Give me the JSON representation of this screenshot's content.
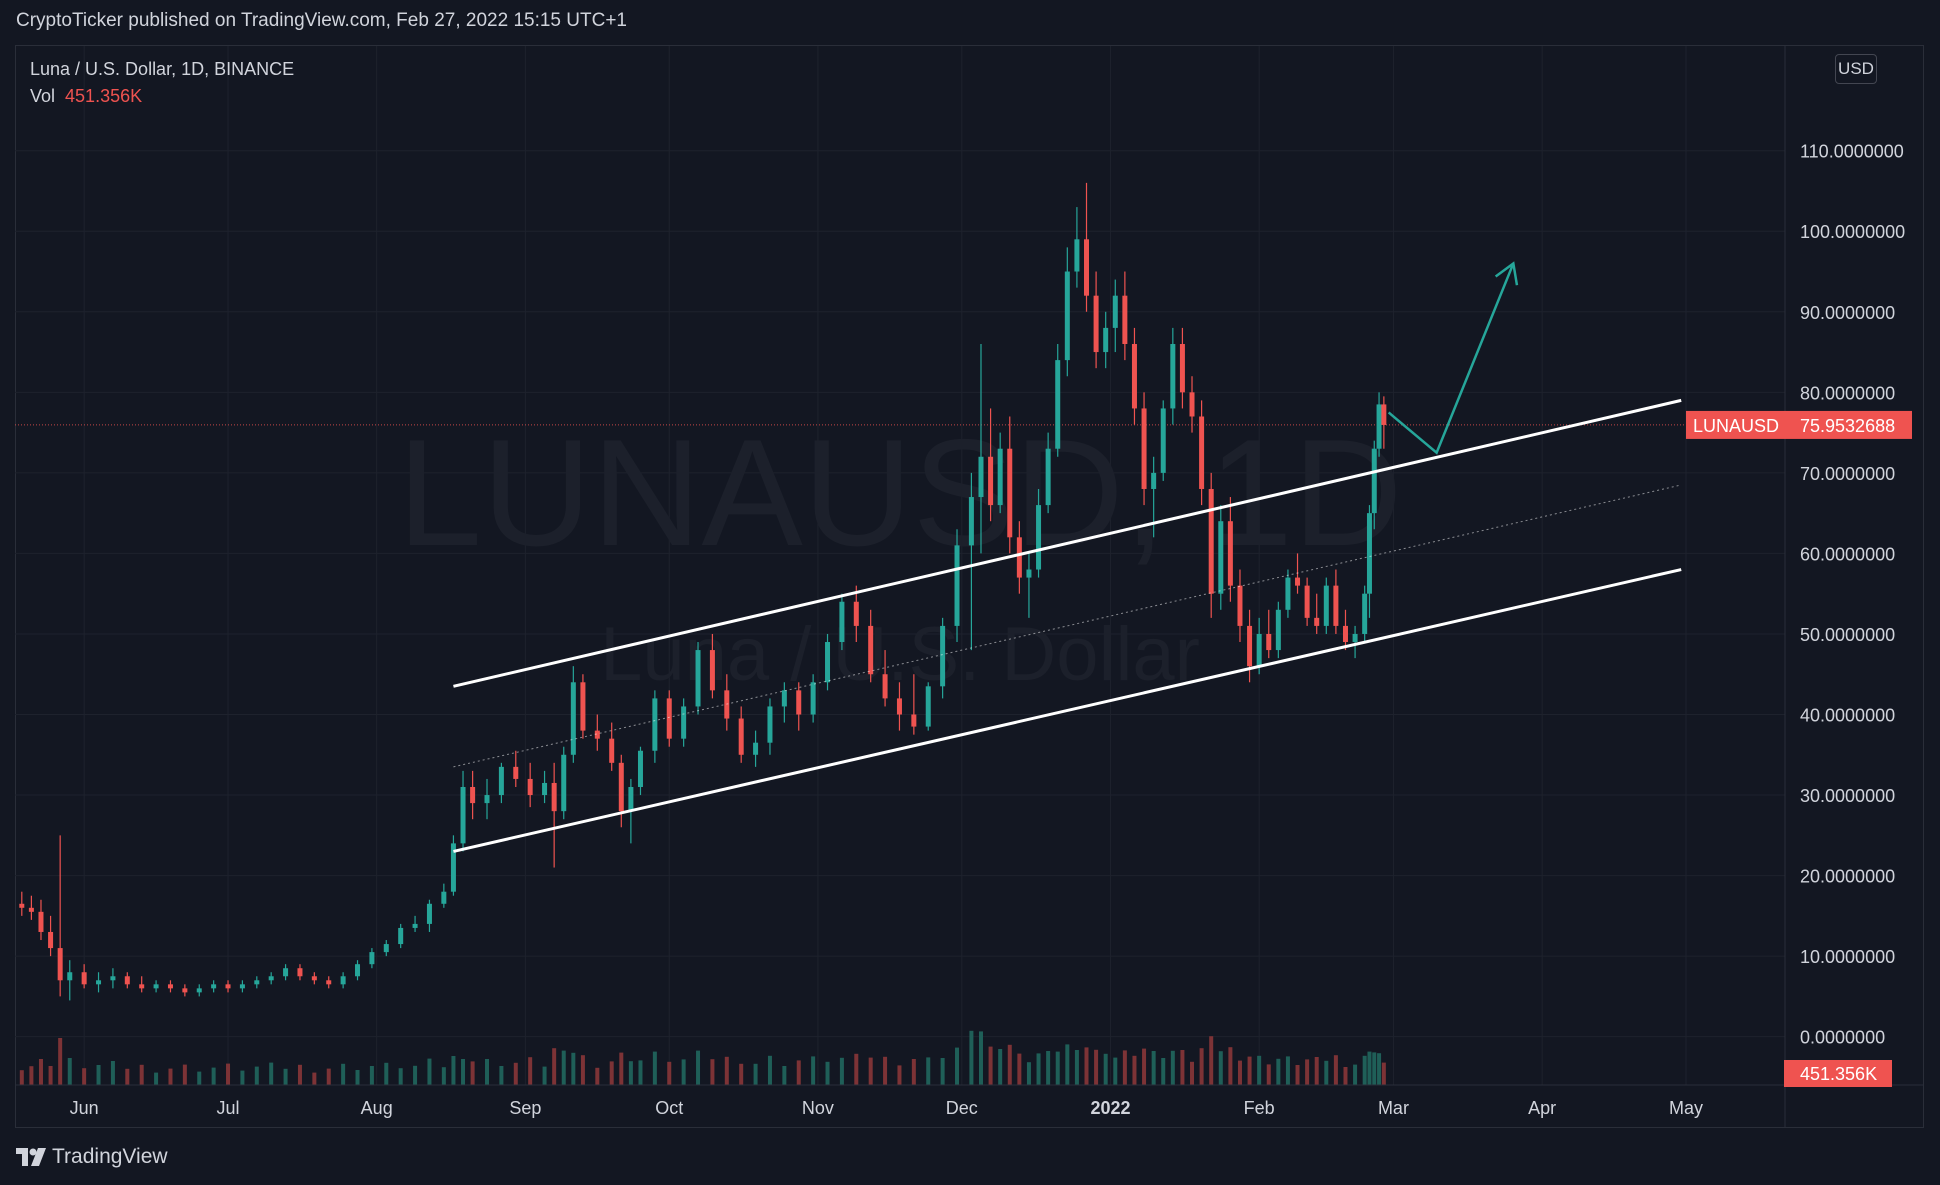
{
  "header": {
    "published_by": "CryptoTicker published on TradingView.com, Feb 27, 2022 15:15 UTC+1"
  },
  "legend": {
    "symbol_line": "Luna / U.S. Dollar, 1D, BINANCE",
    "vol_label": "Vol",
    "vol_value": "451.356K"
  },
  "currency_button": "USD",
  "watermark": {
    "symbol": "LUNAUSD, 1D",
    "name": "Luna / U.S. Dollar"
  },
  "price_tag": {
    "symbol": "LUNAUSD",
    "value": "75.9532688"
  },
  "volume_tag": "451.356K",
  "footer": {
    "brand": "TradingView"
  },
  "colors": {
    "background": "#131722",
    "up": "#26a69a",
    "down": "#ef5350",
    "channel": "#ffffff",
    "arrow": "#26a69a"
  },
  "chart_data": {
    "type": "candlestick",
    "ylim": [
      -6,
      123
    ],
    "y_ticks": [
      {
        "value": 110,
        "label": "110.0000000"
      },
      {
        "value": 100,
        "label": "100.0000000"
      },
      {
        "value": 90,
        "label": "90.0000000"
      },
      {
        "value": 80,
        "label": "80.0000000"
      },
      {
        "value": 70,
        "label": "70.0000000"
      },
      {
        "value": 60,
        "label": "60.0000000"
      },
      {
        "value": 50,
        "label": "50.0000000"
      },
      {
        "value": 40,
        "label": "40.0000000"
      },
      {
        "value": 30,
        "label": "30.0000000"
      },
      {
        "value": 20,
        "label": "20.0000000"
      },
      {
        "value": 10,
        "label": "10.0000000"
      },
      {
        "value": 0,
        "label": "0.0000000"
      }
    ],
    "x_ticks": [
      {
        "date": "2021-06-01",
        "label": "Jun",
        "bold": false
      },
      {
        "date": "2021-07-01",
        "label": "Jul",
        "bold": false
      },
      {
        "date": "2021-08-01",
        "label": "Aug",
        "bold": false
      },
      {
        "date": "2021-09-01",
        "label": "Sep",
        "bold": false
      },
      {
        "date": "2021-10-01",
        "label": "Oct",
        "bold": false
      },
      {
        "date": "2021-11-01",
        "label": "Nov",
        "bold": false
      },
      {
        "date": "2021-12-01",
        "label": "Dec",
        "bold": false
      },
      {
        "date": "2022-01-01",
        "label": "2022",
        "bold": true
      },
      {
        "date": "2022-02-01",
        "label": "Feb",
        "bold": false
      },
      {
        "date": "2022-03-01",
        "label": "Mar",
        "bold": false
      },
      {
        "date": "2022-04-01",
        "label": "Apr",
        "bold": false
      },
      {
        "date": "2022-05-01",
        "label": "May",
        "bold": false
      }
    ],
    "last_price": 75.9532688,
    "channel": {
      "upper": [
        {
          "date": "2021-08-17",
          "value": 43.5
        },
        {
          "date": "2022-04-30",
          "value": 79
        }
      ],
      "middle": [
        {
          "date": "2021-08-17",
          "value": 33.5
        },
        {
          "date": "2022-04-30",
          "value": 68.5
        }
      ],
      "lower": [
        {
          "date": "2021-08-17",
          "value": 23
        },
        {
          "date": "2022-04-30",
          "value": 58
        }
      ]
    },
    "projection_arrow": [
      {
        "date": "2022-02-28",
        "value": 77.5
      },
      {
        "date": "2022-03-10",
        "value": 72.5
      },
      {
        "date": "2022-03-26",
        "value": 96
      }
    ],
    "candles": [
      {
        "date": "2021-05-19",
        "o": 16.5,
        "h": 18.0,
        "l": 15.0,
        "c": 16.0
      },
      {
        "date": "2021-05-21",
        "o": 16.0,
        "h": 17.5,
        "l": 14.5,
        "c": 15.5
      },
      {
        "date": "2021-05-23",
        "o": 15.5,
        "h": 17.0,
        "l": 12.0,
        "c": 13.0
      },
      {
        "date": "2021-05-25",
        "o": 13.0,
        "h": 15.0,
        "l": 10.0,
        "c": 11.0
      },
      {
        "date": "2021-05-27",
        "o": 11.0,
        "h": 25.0,
        "l": 5.0,
        "c": 7.0
      },
      {
        "date": "2021-05-29",
        "o": 7.0,
        "h": 9.5,
        "l": 4.5,
        "c": 8.0
      },
      {
        "date": "2021-06-01",
        "o": 8.0,
        "h": 9.0,
        "l": 6.0,
        "c": 6.5
      },
      {
        "date": "2021-06-04",
        "o": 6.5,
        "h": 8.0,
        "l": 5.5,
        "c": 7.0
      },
      {
        "date": "2021-06-07",
        "o": 7.0,
        "h": 8.5,
        "l": 6.0,
        "c": 7.5
      },
      {
        "date": "2021-06-10",
        "o": 7.5,
        "h": 8.0,
        "l": 6.0,
        "c": 6.5
      },
      {
        "date": "2021-06-13",
        "o": 6.5,
        "h": 7.5,
        "l": 5.5,
        "c": 6.0
      },
      {
        "date": "2021-06-16",
        "o": 6.0,
        "h": 7.0,
        "l": 5.5,
        "c": 6.5
      },
      {
        "date": "2021-06-19",
        "o": 6.5,
        "h": 7.0,
        "l": 5.5,
        "c": 6.0
      },
      {
        "date": "2021-06-22",
        "o": 6.0,
        "h": 6.5,
        "l": 5.0,
        "c": 5.5
      },
      {
        "date": "2021-06-25",
        "o": 5.5,
        "h": 6.5,
        "l": 5.0,
        "c": 6.0
      },
      {
        "date": "2021-06-28",
        "o": 6.0,
        "h": 7.0,
        "l": 5.5,
        "c": 6.5
      },
      {
        "date": "2021-07-01",
        "o": 6.5,
        "h": 7.0,
        "l": 5.5,
        "c": 6.0
      },
      {
        "date": "2021-07-04",
        "o": 6.0,
        "h": 7.0,
        "l": 5.5,
        "c": 6.5
      },
      {
        "date": "2021-07-07",
        "o": 6.5,
        "h": 7.5,
        "l": 6.0,
        "c": 7.0
      },
      {
        "date": "2021-07-10",
        "o": 7.0,
        "h": 8.0,
        "l": 6.5,
        "c": 7.5
      },
      {
        "date": "2021-07-13",
        "o": 7.5,
        "h": 9.0,
        "l": 7.0,
        "c": 8.5
      },
      {
        "date": "2021-07-16",
        "o": 8.5,
        "h": 9.0,
        "l": 7.0,
        "c": 7.5
      },
      {
        "date": "2021-07-19",
        "o": 7.5,
        "h": 8.0,
        "l": 6.5,
        "c": 7.0
      },
      {
        "date": "2021-07-22",
        "o": 7.0,
        "h": 7.5,
        "l": 6.0,
        "c": 6.5
      },
      {
        "date": "2021-07-25",
        "o": 6.5,
        "h": 8.0,
        "l": 6.0,
        "c": 7.5
      },
      {
        "date": "2021-07-28",
        "o": 7.5,
        "h": 9.5,
        "l": 7.0,
        "c": 9.0
      },
      {
        "date": "2021-07-31",
        "o": 9.0,
        "h": 11.0,
        "l": 8.5,
        "c": 10.5
      },
      {
        "date": "2021-08-03",
        "o": 10.5,
        "h": 12.0,
        "l": 10.0,
        "c": 11.5
      },
      {
        "date": "2021-08-06",
        "o": 11.5,
        "h": 14.0,
        "l": 11.0,
        "c": 13.5
      },
      {
        "date": "2021-08-09",
        "o": 13.5,
        "h": 15.0,
        "l": 13.0,
        "c": 14.0
      },
      {
        "date": "2021-08-12",
        "o": 14.0,
        "h": 17.0,
        "l": 13.0,
        "c": 16.5
      },
      {
        "date": "2021-08-15",
        "o": 16.5,
        "h": 19.0,
        "l": 16.0,
        "c": 18.0
      },
      {
        "date": "2021-08-17",
        "o": 18.0,
        "h": 25.0,
        "l": 17.5,
        "c": 24.0
      },
      {
        "date": "2021-08-19",
        "o": 24.0,
        "h": 33.0,
        "l": 23.0,
        "c": 31.0
      },
      {
        "date": "2021-08-21",
        "o": 31.0,
        "h": 33.0,
        "l": 27.0,
        "c": 29.0
      },
      {
        "date": "2021-08-24",
        "o": 29.0,
        "h": 32.0,
        "l": 27.0,
        "c": 30.0
      },
      {
        "date": "2021-08-27",
        "o": 30.0,
        "h": 34.0,
        "l": 29.0,
        "c": 33.5
      },
      {
        "date": "2021-08-30",
        "o": 33.5,
        "h": 35.5,
        "l": 31.0,
        "c": 32.0
      },
      {
        "date": "2021-09-02",
        "o": 32.0,
        "h": 34.0,
        "l": 28.5,
        "c": 30.0
      },
      {
        "date": "2021-09-05",
        "o": 30.0,
        "h": 33.0,
        "l": 29.0,
        "c": 31.5
      },
      {
        "date": "2021-09-07",
        "o": 31.5,
        "h": 34.0,
        "l": 21.0,
        "c": 28.0
      },
      {
        "date": "2021-09-09",
        "o": 28.0,
        "h": 36.0,
        "l": 27.0,
        "c": 35.0
      },
      {
        "date": "2021-09-11",
        "o": 35.0,
        "h": 46.0,
        "l": 34.0,
        "c": 44.0
      },
      {
        "date": "2021-09-13",
        "o": 44.0,
        "h": 45.0,
        "l": 37.0,
        "c": 38.0
      },
      {
        "date": "2021-09-16",
        "o": 38.0,
        "h": 40.0,
        "l": 35.5,
        "c": 37.0
      },
      {
        "date": "2021-09-19",
        "o": 37.0,
        "h": 39.0,
        "l": 33.0,
        "c": 34.0
      },
      {
        "date": "2021-09-21",
        "o": 34.0,
        "h": 35.0,
        "l": 26.0,
        "c": 28.0
      },
      {
        "date": "2021-09-23",
        "o": 28.0,
        "h": 32.0,
        "l": 24.0,
        "c": 31.0
      },
      {
        "date": "2021-09-25",
        "o": 31.0,
        "h": 36.0,
        "l": 30.0,
        "c": 35.5
      },
      {
        "date": "2021-09-28",
        "o": 35.5,
        "h": 43.0,
        "l": 34.0,
        "c": 42.0
      },
      {
        "date": "2021-10-01",
        "o": 42.0,
        "h": 43.0,
        "l": 36.0,
        "c": 37.0
      },
      {
        "date": "2021-10-04",
        "o": 37.0,
        "h": 42.0,
        "l": 36.0,
        "c": 41.0
      },
      {
        "date": "2021-10-07",
        "o": 41.0,
        "h": 49.0,
        "l": 40.0,
        "c": 48.0
      },
      {
        "date": "2021-10-10",
        "o": 48.0,
        "h": 50.0,
        "l": 42.0,
        "c": 43.0
      },
      {
        "date": "2021-10-13",
        "o": 43.0,
        "h": 45.0,
        "l": 38.0,
        "c": 39.5
      },
      {
        "date": "2021-10-16",
        "o": 39.5,
        "h": 41.0,
        "l": 34.0,
        "c": 35.0
      },
      {
        "date": "2021-10-19",
        "o": 35.0,
        "h": 38.0,
        "l": 33.5,
        "c": 36.5
      },
      {
        "date": "2021-10-22",
        "o": 36.5,
        "h": 42.0,
        "l": 35.0,
        "c": 41.0
      },
      {
        "date": "2021-10-25",
        "o": 41.0,
        "h": 44.0,
        "l": 39.0,
        "c": 43.0
      },
      {
        "date": "2021-10-28",
        "o": 43.0,
        "h": 44.0,
        "l": 38.0,
        "c": 40.0
      },
      {
        "date": "2021-10-31",
        "o": 40.0,
        "h": 45.0,
        "l": 39.0,
        "c": 44.0
      },
      {
        "date": "2021-11-03",
        "o": 44.0,
        "h": 50.0,
        "l": 43.0,
        "c": 49.0
      },
      {
        "date": "2021-11-06",
        "o": 49.0,
        "h": 55.0,
        "l": 48.0,
        "c": 54.0
      },
      {
        "date": "2021-11-09",
        "o": 54.0,
        "h": 56.0,
        "l": 49.0,
        "c": 51.0
      },
      {
        "date": "2021-11-12",
        "o": 51.0,
        "h": 53.0,
        "l": 44.0,
        "c": 45.0
      },
      {
        "date": "2021-11-15",
        "o": 45.0,
        "h": 48.0,
        "l": 41.0,
        "c": 42.0
      },
      {
        "date": "2021-11-18",
        "o": 42.0,
        "h": 44.0,
        "l": 38.0,
        "c": 40.0
      },
      {
        "date": "2021-11-21",
        "o": 40.0,
        "h": 45.0,
        "l": 37.5,
        "c": 38.5
      },
      {
        "date": "2021-11-24",
        "o": 38.5,
        "h": 44.0,
        "l": 38.0,
        "c": 43.5
      },
      {
        "date": "2021-11-27",
        "o": 43.5,
        "h": 52.0,
        "l": 42.0,
        "c": 51.0
      },
      {
        "date": "2021-11-30",
        "o": 51.0,
        "h": 63.0,
        "l": 49.0,
        "c": 61.0
      },
      {
        "date": "2021-12-03",
        "o": 61.0,
        "h": 70.0,
        "l": 48.0,
        "c": 67.0
      },
      {
        "date": "2021-12-05",
        "o": 67.0,
        "h": 86.0,
        "l": 60.0,
        "c": 72.0
      },
      {
        "date": "2021-12-07",
        "o": 72.0,
        "h": 78.0,
        "l": 64.0,
        "c": 66.0
      },
      {
        "date": "2021-12-09",
        "o": 66.0,
        "h": 75.0,
        "l": 65.0,
        "c": 73.0
      },
      {
        "date": "2021-12-11",
        "o": 73.0,
        "h": 77.0,
        "l": 60.0,
        "c": 62.0
      },
      {
        "date": "2021-12-13",
        "o": 62.0,
        "h": 64.0,
        "l": 55.0,
        "c": 57.0
      },
      {
        "date": "2021-12-15",
        "o": 57.0,
        "h": 60.0,
        "l": 52.0,
        "c": 58.0
      },
      {
        "date": "2021-12-17",
        "o": 58.0,
        "h": 68.0,
        "l": 57.0,
        "c": 66.0
      },
      {
        "date": "2021-12-19",
        "o": 66.0,
        "h": 75.0,
        "l": 65.0,
        "c": 73.0
      },
      {
        "date": "2021-12-21",
        "o": 73.0,
        "h": 86.0,
        "l": 72.0,
        "c": 84.0
      },
      {
        "date": "2021-12-23",
        "o": 84.0,
        "h": 98.0,
        "l": 82.0,
        "c": 95.0
      },
      {
        "date": "2021-12-25",
        "o": 95.0,
        "h": 103.0,
        "l": 93.0,
        "c": 99.0
      },
      {
        "date": "2021-12-27",
        "o": 99.0,
        "h": 106.0,
        "l": 90.0,
        "c": 92.0
      },
      {
        "date": "2021-12-29",
        "o": 92.0,
        "h": 95.0,
        "l": 83.0,
        "c": 85.0
      },
      {
        "date": "2021-12-31",
        "o": 85.0,
        "h": 90.0,
        "l": 83.0,
        "c": 88.0
      },
      {
        "date": "2022-01-02",
        "o": 88.0,
        "h": 94.0,
        "l": 85.0,
        "c": 92.0
      },
      {
        "date": "2022-01-04",
        "o": 92.0,
        "h": 95.0,
        "l": 84.0,
        "c": 86.0
      },
      {
        "date": "2022-01-06",
        "o": 86.0,
        "h": 88.0,
        "l": 76.0,
        "c": 78.0
      },
      {
        "date": "2022-01-08",
        "o": 78.0,
        "h": 80.0,
        "l": 66.0,
        "c": 68.0
      },
      {
        "date": "2022-01-10",
        "o": 68.0,
        "h": 72.0,
        "l": 62.0,
        "c": 70.0
      },
      {
        "date": "2022-01-12",
        "o": 70.0,
        "h": 79.0,
        "l": 69.0,
        "c": 78.0
      },
      {
        "date": "2022-01-14",
        "o": 78.0,
        "h": 88.0,
        "l": 76.0,
        "c": 86.0
      },
      {
        "date": "2022-01-16",
        "o": 86.0,
        "h": 88.0,
        "l": 78.0,
        "c": 80.0
      },
      {
        "date": "2022-01-18",
        "o": 80.0,
        "h": 82.0,
        "l": 75.0,
        "c": 77.0
      },
      {
        "date": "2022-01-20",
        "o": 77.0,
        "h": 79.0,
        "l": 66.0,
        "c": 68.0
      },
      {
        "date": "2022-01-22",
        "o": 68.0,
        "h": 70.0,
        "l": 52.0,
        "c": 55.0
      },
      {
        "date": "2022-01-24",
        "o": 55.0,
        "h": 66.0,
        "l": 53.0,
        "c": 64.0
      },
      {
        "date": "2022-01-26",
        "o": 64.0,
        "h": 67.0,
        "l": 54.0,
        "c": 56.0
      },
      {
        "date": "2022-01-28",
        "o": 56.0,
        "h": 58.0,
        "l": 49.0,
        "c": 51.0
      },
      {
        "date": "2022-01-30",
        "o": 51.0,
        "h": 53.0,
        "l": 44.0,
        "c": 46.0
      },
      {
        "date": "2022-02-01",
        "o": 46.0,
        "h": 52.0,
        "l": 45.0,
        "c": 50.0
      },
      {
        "date": "2022-02-03",
        "o": 50.0,
        "h": 53.0,
        "l": 47.0,
        "c": 48.0
      },
      {
        "date": "2022-02-05",
        "o": 48.0,
        "h": 54.0,
        "l": 47.0,
        "c": 53.0
      },
      {
        "date": "2022-02-07",
        "o": 53.0,
        "h": 58.0,
        "l": 52.0,
        "c": 57.0
      },
      {
        "date": "2022-02-09",
        "o": 57.0,
        "h": 60.0,
        "l": 55.0,
        "c": 56.0
      },
      {
        "date": "2022-02-11",
        "o": 56.0,
        "h": 57.0,
        "l": 51.0,
        "c": 52.0
      },
      {
        "date": "2022-02-13",
        "o": 52.0,
        "h": 55.0,
        "l": 50.0,
        "c": 51.0
      },
      {
        "date": "2022-02-15",
        "o": 51.0,
        "h": 57.0,
        "l": 50.0,
        "c": 56.0
      },
      {
        "date": "2022-02-17",
        "o": 56.0,
        "h": 58.0,
        "l": 50.0,
        "c": 51.0
      },
      {
        "date": "2022-02-19",
        "o": 51.0,
        "h": 53.0,
        "l": 48.0,
        "c": 49.0
      },
      {
        "date": "2022-02-21",
        "o": 49.0,
        "h": 51.0,
        "l": 47.0,
        "c": 50.0
      },
      {
        "date": "2022-02-23",
        "o": 50.0,
        "h": 56.0,
        "l": 49.0,
        "c": 55.0
      },
      {
        "date": "2022-02-24",
        "o": 55.0,
        "h": 66.0,
        "l": 52.0,
        "c": 65.0
      },
      {
        "date": "2022-02-25",
        "o": 65.0,
        "h": 74.0,
        "l": 63.0,
        "c": 73.0
      },
      {
        "date": "2022-02-26",
        "o": 73.0,
        "h": 80.0,
        "l": 72.0,
        "c": 78.5
      },
      {
        "date": "2022-02-27",
        "o": 78.5,
        "h": 79.5,
        "l": 73.0,
        "c": 75.95
      }
    ]
  }
}
